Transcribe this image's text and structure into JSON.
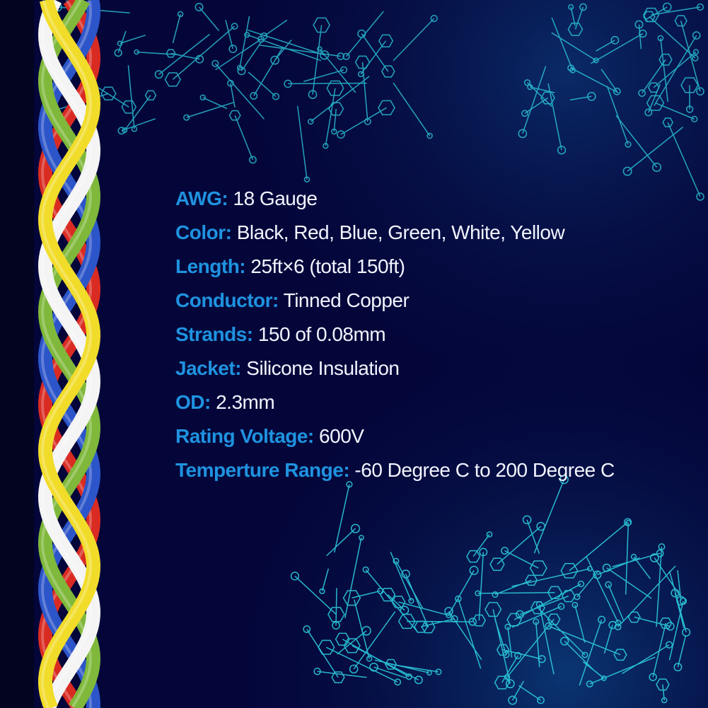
{
  "colors": {
    "background": "#04063a",
    "label": "#1f93e0",
    "value": "#f2f4ff",
    "circuit": "#2fd6e6"
  },
  "wire_colors": [
    "#d92b22",
    "#2c55c9",
    "#7fb83a",
    "#f4f4f4",
    "#f2dc2a"
  ],
  "specs": [
    {
      "label": "AWG:",
      "value": "18 Gauge"
    },
    {
      "label": "Color:",
      "value": "Black, Red, Blue, Green, White, Yellow"
    },
    {
      "label": "Length:",
      "value": "25ft×6 (total 150ft)"
    },
    {
      "label": "Conductor:",
      "value": "Tinned Copper"
    },
    {
      "label": "Strands:",
      "value": "150 of 0.08mm"
    },
    {
      "label": "Jacket:",
      "value": "Silicone Insulation"
    },
    {
      "label": "OD:",
      "value": "2.3mm"
    },
    {
      "label": "Rating Voltage:",
      "value": "600V"
    },
    {
      "label": "Temperture Range:",
      "value": "-60 Degree C to 200 Degree C"
    }
  ]
}
